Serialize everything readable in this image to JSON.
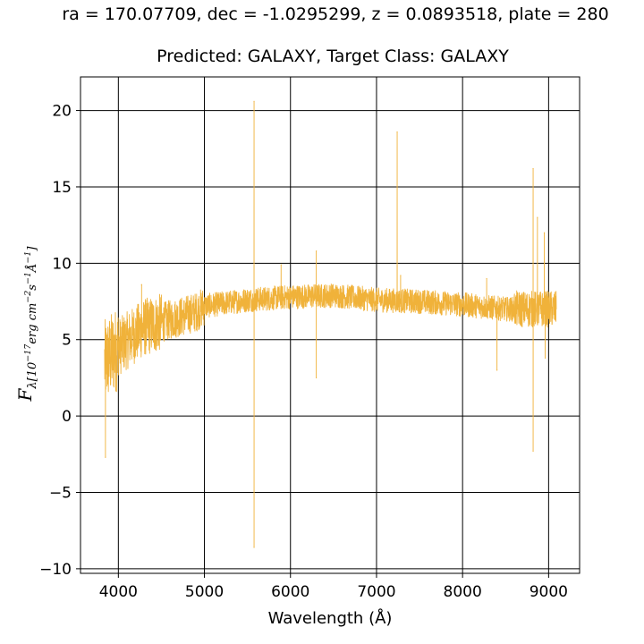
{
  "chart_data": {
    "type": "line",
    "title": "ra = 170.07709, dec = -1.0295299, z = 0.0893518, plate = 280",
    "subtitle": "Predicted: GALAXY, Target Class: GALAXY",
    "xlabel": "Wavelength (Å)",
    "ylabel": {
      "base": "F",
      "subscript": "λ[10",
      "exp1": "−17",
      "mid1": "erg cm",
      "exp2": "−2",
      "mid2": "s",
      "exp3": "−1",
      "mid3": "Å",
      "exp4": "−1",
      "end": "]"
    },
    "xlim": [
      3560,
      9360
    ],
    "ylim": [
      -10.3,
      22.2
    ],
    "x_ticks": [
      4000,
      5000,
      6000,
      7000,
      8000,
      9000
    ],
    "x_tick_labels": [
      "4000",
      "5000",
      "6000",
      "7000",
      "8000",
      "9000"
    ],
    "y_ticks": [
      20,
      15,
      10,
      5,
      0,
      -5,
      -10
    ],
    "y_tick_labels": [
      "20",
      "15",
      "10",
      "5",
      "0",
      "−5",
      "−10"
    ],
    "grid": true,
    "line_color": "#f0b23a",
    "series": [
      {
        "x_range": [
          3840,
          9090
        ],
        "continuum": [
          [
            3840,
            3.5
          ],
          [
            4000,
            4.5
          ],
          [
            4300,
            5.8
          ],
          [
            4600,
            6.3
          ],
          [
            4900,
            6.8
          ],
          [
            5000,
            7.2
          ],
          [
            5500,
            7.6
          ],
          [
            6000,
            7.8
          ],
          [
            6500,
            7.9
          ],
          [
            7000,
            7.6
          ],
          [
            7500,
            7.5
          ],
          [
            8000,
            7.3
          ],
          [
            8500,
            7.0
          ],
          [
            9090,
            7.0
          ]
        ],
        "features": [
          {
            "x": 3850,
            "y": -2.7
          },
          {
            "x": 4270,
            "y": 8.6
          },
          {
            "x": 5577,
            "y": 20.6
          },
          {
            "x": 5577,
            "y": -8.6
          },
          {
            "x": 5891,
            "y": 9.9
          },
          {
            "x": 6300,
            "y": 10.8
          },
          {
            "x": 6300,
            "y": 2.5
          },
          {
            "x": 7240,
            "y": 18.6
          },
          {
            "x": 7280,
            "y": 9.2
          },
          {
            "x": 8280,
            "y": 9.0
          },
          {
            "x": 8400,
            "y": 3.0
          },
          {
            "x": 8820,
            "y": 16.2
          },
          {
            "x": 8820,
            "y": -2.3
          },
          {
            "x": 8870,
            "y": 13.0
          },
          {
            "x": 8950,
            "y": 12.0
          },
          {
            "x": 8960,
            "y": 3.8
          }
        ]
      }
    ]
  }
}
